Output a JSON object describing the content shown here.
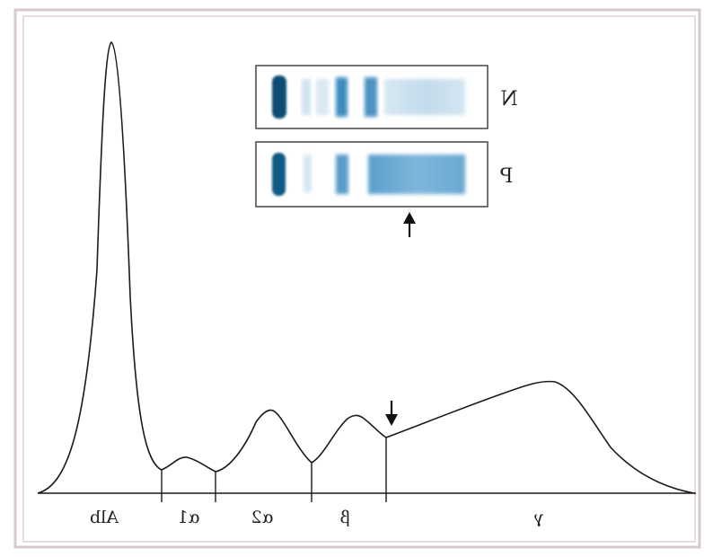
{
  "figure": {
    "frame_color": "#d9c9cc",
    "curve_color": "#1a1a1a",
    "band_color": "#2f7fb3",
    "band_dark": "#0e4d73",
    "fractions": [
      {
        "key": "alb",
        "label": "Alb"
      },
      {
        "key": "alpha1",
        "label": "α1"
      },
      {
        "key": "alpha2",
        "label": "α2"
      },
      {
        "key": "beta",
        "label": "β"
      },
      {
        "key": "gamma",
        "label": "γ"
      }
    ],
    "lanes": [
      {
        "key": "n",
        "label": "N"
      },
      {
        "key": "p",
        "label": "P"
      }
    ],
    "arrows": [
      "arrow-up-icon",
      "arrow-down-icon"
    ],
    "mirrored_text": true
  }
}
